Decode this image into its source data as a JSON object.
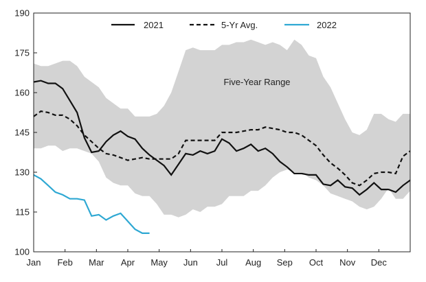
{
  "chart_data": {
    "type": "line",
    "title": "",
    "xlabel": "",
    "ylabel": "",
    "ylim": [
      100,
      190
    ],
    "yticks": [
      100,
      115,
      130,
      145,
      160,
      175,
      190
    ],
    "month_labels": [
      "Jan",
      "Feb",
      "Mar",
      "Apr",
      "May",
      "Jun",
      "Jul",
      "Aug",
      "Sep",
      "Oct",
      "Nov",
      "Dec"
    ],
    "x_range": [
      0,
      52
    ],
    "grid": false,
    "legend_position": "top-center",
    "annotation": "Five-Year Range",
    "colors": {
      "range_fill": "#d3d3d3",
      "series_2021": "#111111",
      "series_avg": "#111111",
      "series_2022": "#2ea8d3"
    },
    "range": {
      "name": "Five-Year Range",
      "x": [
        0,
        1,
        2,
        3,
        4,
        5,
        6,
        7,
        8,
        9,
        10,
        11,
        12,
        13,
        14,
        15,
        16,
        17,
        18,
        19,
        20,
        21,
        22,
        23,
        24,
        25,
        26,
        27,
        28,
        29,
        30,
        31,
        32,
        33,
        34,
        35,
        36,
        37,
        38,
        39,
        40,
        41,
        42,
        43,
        44,
        45,
        46,
        47,
        48,
        49,
        50,
        51,
        52
      ],
      "upper": [
        171,
        170,
        170,
        171,
        172,
        172,
        170,
        166,
        164,
        162,
        158,
        156,
        154,
        154,
        151,
        151,
        151,
        152,
        155,
        160,
        168,
        176,
        177,
        176,
        176,
        176,
        178,
        178,
        179,
        179,
        180,
        179,
        178,
        179,
        178,
        176,
        180,
        178,
        174,
        173,
        166,
        162,
        156,
        150,
        145,
        144,
        146,
        152,
        152,
        150,
        149,
        152,
        152
      ],
      "lower": [
        139,
        139,
        140,
        140,
        138,
        139,
        139,
        138,
        137,
        134,
        128,
        126,
        125,
        125,
        122,
        121,
        121,
        118,
        114,
        114,
        113,
        114,
        116,
        115,
        117,
        117,
        118,
        121,
        121,
        121,
        123,
        123,
        125,
        128,
        130,
        131,
        130,
        130,
        128,
        127,
        125,
        122,
        121,
        120,
        119,
        117,
        116,
        117,
        120,
        124,
        120,
        120,
        123
      ]
    },
    "series": [
      {
        "name": "2021",
        "style": "solid",
        "x": [
          0,
          1,
          2,
          3,
          4,
          5,
          6,
          7,
          8,
          9,
          10,
          11,
          12,
          13,
          14,
          15,
          16,
          17,
          18,
          19,
          20,
          21,
          22,
          23,
          24,
          25,
          26,
          27,
          28,
          29,
          30,
          31,
          32,
          33,
          34,
          35,
          36,
          37,
          38,
          39,
          40,
          41,
          42,
          43,
          44,
          45,
          46,
          47,
          48,
          49,
          50,
          51,
          52
        ],
        "values": [
          164,
          164.5,
          163.5,
          163.5,
          161.5,
          157,
          152.5,
          143,
          137.5,
          138,
          141.5,
          144,
          145.5,
          143.5,
          142.5,
          139,
          136.5,
          134.5,
          132.5,
          129,
          133,
          137,
          136.5,
          138,
          137,
          138,
          142.5,
          141,
          138,
          139,
          140.5,
          138,
          139,
          137,
          134,
          132,
          129.5,
          129.5,
          129,
          129,
          125.5,
          125,
          127,
          124.5,
          124,
          121.5,
          123.5,
          126,
          123.5,
          123.5,
          122.5,
          125,
          127
        ]
      },
      {
        "name": "5-Yr Avg.",
        "style": "dashed",
        "x": [
          0,
          1,
          2,
          3,
          4,
          5,
          6,
          7,
          8,
          9,
          10,
          11,
          12,
          13,
          14,
          15,
          16,
          17,
          18,
          19,
          20,
          21,
          22,
          23,
          24,
          25,
          26,
          27,
          28,
          29,
          30,
          31,
          32,
          33,
          34,
          35,
          36,
          37,
          38,
          39,
          40,
          41,
          42,
          43,
          44,
          45,
          46,
          47,
          48,
          49,
          50,
          51,
          52
        ],
        "values": [
          151,
          153,
          152.5,
          151.5,
          151.5,
          150,
          147.5,
          144,
          141.5,
          139,
          137,
          136.5,
          135.5,
          134.5,
          135,
          135.5,
          135,
          135,
          135,
          135,
          137,
          142,
          142,
          142,
          142,
          142,
          145,
          145,
          145,
          145.5,
          146,
          146,
          147,
          146.5,
          146,
          145,
          145,
          144,
          142,
          140,
          136.5,
          133.5,
          131.5,
          129,
          126,
          125,
          127,
          129.5,
          130,
          130,
          129.5,
          136,
          138
        ]
      },
      {
        "name": "2022",
        "style": "solid",
        "x": [
          0,
          1,
          2,
          3,
          4,
          5,
          6,
          7,
          8,
          9,
          10,
          11,
          12,
          13,
          14,
          15,
          16
        ],
        "values": [
          129,
          127.5,
          125,
          122.5,
          121.5,
          120,
          120,
          119.5,
          113.5,
          114,
          112,
          113.5,
          114.5,
          111.5,
          108.5,
          107,
          107
        ]
      }
    ]
  }
}
